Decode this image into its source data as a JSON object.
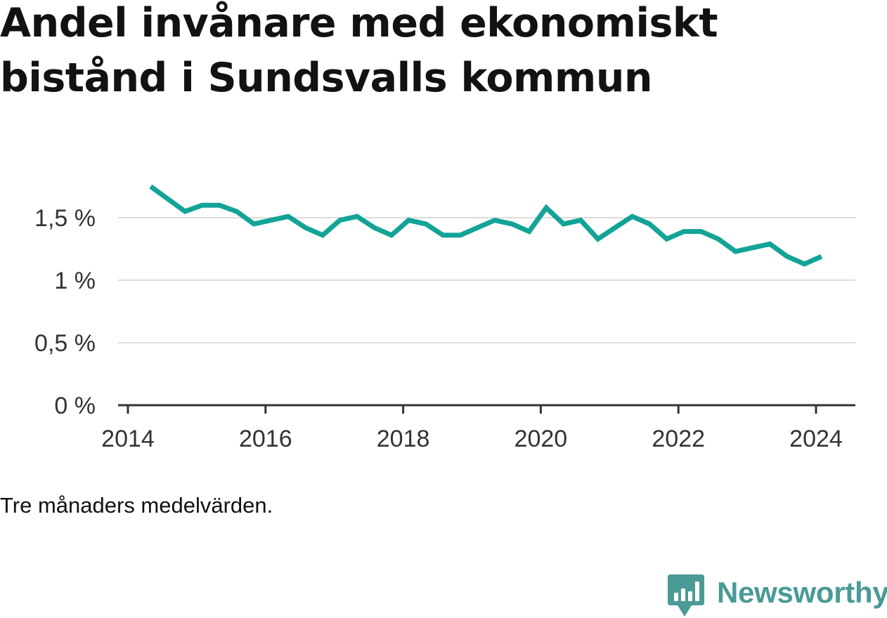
{
  "title": {
    "line1": "Andel invånare med ekonomiskt",
    "line2": "bistånd i Sundsvalls kommun"
  },
  "note": "Tre månaders medelvärden.",
  "brand": {
    "name": "Newsworthy",
    "icon": "newsworthy-logo-icon",
    "color": "#4a9a96"
  },
  "colors": {
    "line": "#13a397",
    "grid": "#dcdcdc",
    "axis": "#333333"
  },
  "chart_data": {
    "type": "line",
    "title": "Andel invånare med ekonomiskt bistånd i Sundsvalls kommun",
    "xlabel": "",
    "ylabel": "",
    "xlim": [
      2014.0,
      2024.25
    ],
    "ylim": [
      0,
      1.8
    ],
    "grid": true,
    "y_ticks": [
      {
        "value": 0,
        "label": "0 %"
      },
      {
        "value": 0.5,
        "label": "0,5 %"
      },
      {
        "value": 1,
        "label": "1 %"
      },
      {
        "value": 1.5,
        "label": "1,5 %"
      }
    ],
    "x_ticks": [
      {
        "value": 2014,
        "label": "2014"
      },
      {
        "value": 2016,
        "label": "2016"
      },
      {
        "value": 2018,
        "label": "2018"
      },
      {
        "value": 2020,
        "label": "2020"
      },
      {
        "value": 2022,
        "label": "2022"
      },
      {
        "value": 2024,
        "label": "2024"
      }
    ],
    "series": [
      {
        "x": [
          2014.33,
          2014.58,
          2014.83,
          2015.08,
          2015.33,
          2015.58,
          2015.83,
          2016.08,
          2016.33,
          2016.58,
          2016.83,
          2017.08,
          2017.33,
          2017.58,
          2017.83,
          2018.08,
          2018.33,
          2018.58,
          2018.83,
          2019.08,
          2019.33,
          2019.58,
          2019.83,
          2020.08,
          2020.33,
          2020.58,
          2020.83,
          2021.08,
          2021.33,
          2021.58,
          2021.83,
          2022.08,
          2022.33,
          2022.58,
          2022.83,
          2023.08,
          2023.33,
          2023.58,
          2023.83,
          2024.08
        ],
        "y": [
          1.75,
          1.65,
          1.55,
          1.6,
          1.6,
          1.55,
          1.45,
          1.48,
          1.51,
          1.42,
          1.36,
          1.48,
          1.51,
          1.42,
          1.36,
          1.48,
          1.45,
          1.36,
          1.36,
          1.42,
          1.48,
          1.45,
          1.39,
          1.58,
          1.45,
          1.48,
          1.33,
          1.42,
          1.51,
          1.45,
          1.33,
          1.39,
          1.39,
          1.33,
          1.23,
          1.26,
          1.29,
          1.19,
          1.13,
          1.19
        ]
      }
    ]
  }
}
